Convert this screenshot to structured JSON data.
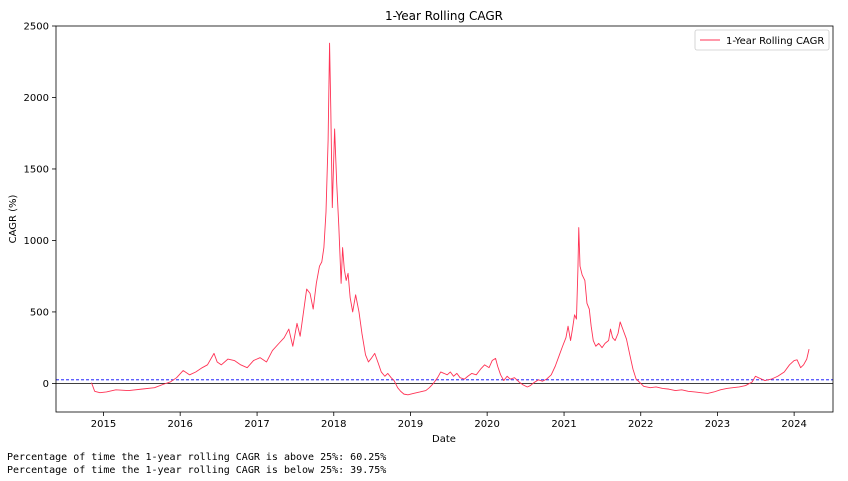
{
  "chart_data": {
    "type": "line",
    "title": "1-Year Rolling CAGR",
    "xlabel": "Date",
    "ylabel": "CAGR (%)",
    "xlim": [
      "2014-05-20",
      "2024-07-04"
    ],
    "ylim": [
      -200,
      2500
    ],
    "x_ticks": [
      "2015",
      "2016",
      "2017",
      "2018",
      "2019",
      "2020",
      "2021",
      "2022",
      "2023",
      "2024"
    ],
    "y_ticks": [
      0,
      500,
      1000,
      1500,
      2000,
      2500
    ],
    "grid": false,
    "legend_position": "top-right",
    "reference_lines": [
      {
        "value": 0,
        "style": "solid",
        "color": "#000000"
      },
      {
        "value": 25,
        "style": "dashed",
        "color": "#0000ff"
      }
    ],
    "series": [
      {
        "name": "1-Year Rolling CAGR",
        "color": "#ff3355",
        "points": [
          [
            "2014-11-05",
            5
          ],
          [
            "2014-11-20",
            -55
          ],
          [
            "2014-12-15",
            -65
          ],
          [
            "2015-01-15",
            -60
          ],
          [
            "2015-03-01",
            -45
          ],
          [
            "2015-05-01",
            -50
          ],
          [
            "2015-07-01",
            -40
          ],
          [
            "2015-09-01",
            -30
          ],
          [
            "2015-10-15",
            -5
          ],
          [
            "2015-11-15",
            10
          ],
          [
            "2015-12-15",
            40
          ],
          [
            "2016-01-15",
            90
          ],
          [
            "2016-02-15",
            60
          ],
          [
            "2016-03-15",
            80
          ],
          [
            "2016-04-15",
            110
          ],
          [
            "2016-05-10",
            130
          ],
          [
            "2016-06-10",
            210
          ],
          [
            "2016-06-25",
            150
          ],
          [
            "2016-07-15",
            130
          ],
          [
            "2016-08-15",
            170
          ],
          [
            "2016-09-15",
            160
          ],
          [
            "2016-10-15",
            130
          ],
          [
            "2016-11-15",
            110
          ],
          [
            "2016-12-15",
            160
          ],
          [
            "2017-01-15",
            180
          ],
          [
            "2017-02-15",
            150
          ],
          [
            "2017-03-15",
            230
          ],
          [
            "2017-04-15",
            280
          ],
          [
            "2017-05-10",
            320
          ],
          [
            "2017-06-01",
            380
          ],
          [
            "2017-06-20",
            260
          ],
          [
            "2017-07-10",
            420
          ],
          [
            "2017-07-25",
            330
          ],
          [
            "2017-08-10",
            500
          ],
          [
            "2017-08-25",
            660
          ],
          [
            "2017-09-10",
            630
          ],
          [
            "2017-09-25",
            520
          ],
          [
            "2017-10-10",
            700
          ],
          [
            "2017-10-25",
            820
          ],
          [
            "2017-11-05",
            850
          ],
          [
            "2017-11-15",
            950
          ],
          [
            "2017-11-25",
            1200
          ],
          [
            "2017-12-05",
            1700
          ],
          [
            "2017-12-12",
            2380
          ],
          [
            "2017-12-18",
            1900
          ],
          [
            "2017-12-25",
            1230
          ],
          [
            "2018-01-05",
            1780
          ],
          [
            "2018-01-15",
            1400
          ],
          [
            "2018-01-25",
            1100
          ],
          [
            "2018-02-05",
            700
          ],
          [
            "2018-02-12",
            950
          ],
          [
            "2018-02-20",
            800
          ],
          [
            "2018-03-01",
            720
          ],
          [
            "2018-03-10",
            770
          ],
          [
            "2018-03-20",
            600
          ],
          [
            "2018-04-01",
            500
          ],
          [
            "2018-04-15",
            620
          ],
          [
            "2018-05-01",
            500
          ],
          [
            "2018-05-15",
            350
          ],
          [
            "2018-06-01",
            200
          ],
          [
            "2018-06-15",
            150
          ],
          [
            "2018-07-01",
            180
          ],
          [
            "2018-07-15",
            210
          ],
          [
            "2018-08-01",
            140
          ],
          [
            "2018-08-15",
            80
          ],
          [
            "2018-09-01",
            50
          ],
          [
            "2018-09-15",
            70
          ],
          [
            "2018-10-01",
            40
          ],
          [
            "2018-10-15",
            20
          ],
          [
            "2018-11-01",
            -30
          ],
          [
            "2018-11-15",
            -55
          ],
          [
            "2018-12-01",
            -75
          ],
          [
            "2018-12-20",
            -80
          ],
          [
            "2019-01-15",
            -70
          ],
          [
            "2019-02-15",
            -60
          ],
          [
            "2019-03-15",
            -50
          ],
          [
            "2019-04-01",
            -30
          ],
          [
            "2019-04-20",
            0
          ],
          [
            "2019-05-10",
            40
          ],
          [
            "2019-05-25",
            80
          ],
          [
            "2019-06-10",
            70
          ],
          [
            "2019-06-25",
            60
          ],
          [
            "2019-07-10",
            80
          ],
          [
            "2019-07-25",
            50
          ],
          [
            "2019-08-10",
            70
          ],
          [
            "2019-08-25",
            40
          ],
          [
            "2019-09-15",
            30
          ],
          [
            "2019-10-01",
            50
          ],
          [
            "2019-10-20",
            70
          ],
          [
            "2019-11-10",
            60
          ],
          [
            "2019-12-01",
            100
          ],
          [
            "2019-12-20",
            130
          ],
          [
            "2020-01-10",
            110
          ],
          [
            "2020-01-25",
            160
          ],
          [
            "2020-02-10",
            175
          ],
          [
            "2020-02-20",
            120
          ],
          [
            "2020-03-05",
            60
          ],
          [
            "2020-03-20",
            20
          ],
          [
            "2020-04-05",
            50
          ],
          [
            "2020-04-20",
            30
          ],
          [
            "2020-05-10",
            40
          ],
          [
            "2020-06-01",
            10
          ],
          [
            "2020-06-20",
            -10
          ],
          [
            "2020-07-10",
            -25
          ],
          [
            "2020-07-25",
            -15
          ],
          [
            "2020-08-10",
            5
          ],
          [
            "2020-09-01",
            25
          ],
          [
            "2020-09-20",
            15
          ],
          [
            "2020-10-10",
            30
          ],
          [
            "2020-11-01",
            60
          ],
          [
            "2020-11-20",
            120
          ],
          [
            "2020-12-10",
            200
          ],
          [
            "2020-12-25",
            260
          ],
          [
            "2021-01-10",
            320
          ],
          [
            "2021-01-20",
            400
          ],
          [
            "2021-02-01",
            300
          ],
          [
            "2021-02-10",
            380
          ],
          [
            "2021-02-20",
            480
          ],
          [
            "2021-03-01",
            450
          ],
          [
            "2021-03-08",
            800
          ],
          [
            "2021-03-12",
            1090
          ],
          [
            "2021-03-18",
            820
          ],
          [
            "2021-03-28",
            760
          ],
          [
            "2021-04-10",
            720
          ],
          [
            "2021-04-20",
            560
          ],
          [
            "2021-05-01",
            520
          ],
          [
            "2021-05-10",
            400
          ],
          [
            "2021-05-20",
            300
          ],
          [
            "2021-06-01",
            260
          ],
          [
            "2021-06-15",
            280
          ],
          [
            "2021-07-01",
            250
          ],
          [
            "2021-07-15",
            280
          ],
          [
            "2021-08-01",
            300
          ],
          [
            "2021-08-10",
            380
          ],
          [
            "2021-08-20",
            320
          ],
          [
            "2021-09-01",
            300
          ],
          [
            "2021-09-15",
            350
          ],
          [
            "2021-09-25",
            430
          ],
          [
            "2021-10-10",
            370
          ],
          [
            "2021-10-25",
            310
          ],
          [
            "2021-11-10",
            200
          ],
          [
            "2021-11-25",
            100
          ],
          [
            "2021-12-10",
            30
          ],
          [
            "2021-12-25",
            10
          ],
          [
            "2022-01-15",
            -20
          ],
          [
            "2022-02-15",
            -30
          ],
          [
            "2022-03-15",
            -25
          ],
          [
            "2022-04-15",
            -35
          ],
          [
            "2022-05-15",
            -40
          ],
          [
            "2022-06-15",
            -50
          ],
          [
            "2022-07-15",
            -45
          ],
          [
            "2022-08-15",
            -55
          ],
          [
            "2022-09-15",
            -60
          ],
          [
            "2022-10-15",
            -65
          ],
          [
            "2022-11-15",
            -70
          ],
          [
            "2022-12-15",
            -60
          ],
          [
            "2023-01-15",
            -45
          ],
          [
            "2023-02-15",
            -35
          ],
          [
            "2023-03-15",
            -30
          ],
          [
            "2023-04-15",
            -25
          ],
          [
            "2023-05-15",
            -15
          ],
          [
            "2023-06-15",
            10
          ],
          [
            "2023-07-01",
            50
          ],
          [
            "2023-07-15",
            40
          ],
          [
            "2023-08-15",
            20
          ],
          [
            "2023-09-15",
            30
          ],
          [
            "2023-10-15",
            50
          ],
          [
            "2023-11-15",
            80
          ],
          [
            "2023-12-10",
            130
          ],
          [
            "2024-01-01",
            160
          ],
          [
            "2024-01-15",
            165
          ],
          [
            "2024-02-01",
            110
          ],
          [
            "2024-02-15",
            130
          ],
          [
            "2024-03-01",
            170
          ],
          [
            "2024-03-12",
            240
          ]
        ]
      }
    ]
  },
  "stats": {
    "above_text": "Percentage of time the 1-year rolling CAGR is above 25%: 60.25%",
    "below_text": "Percentage of time the 1-year rolling CAGR is below 25%: 39.75%"
  }
}
